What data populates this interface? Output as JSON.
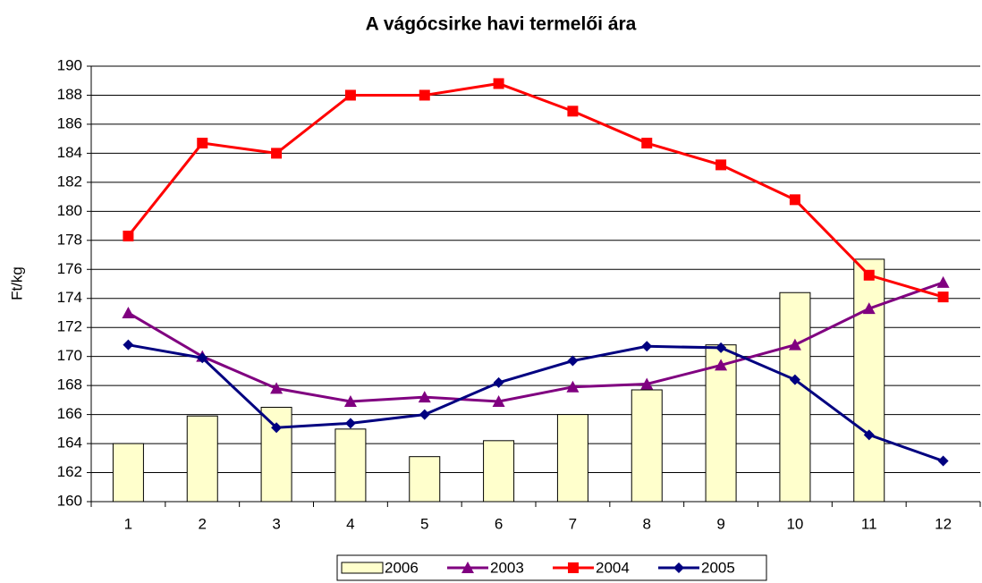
{
  "chart_data": {
    "type": "combo",
    "title": "A vágócsirke havi termelői ára",
    "y_label": "Ft/kg",
    "categories": [
      "1",
      "2",
      "3",
      "4",
      "5",
      "6",
      "7",
      "8",
      "9",
      "10",
      "11",
      "12"
    ],
    "series": [
      {
        "name": "2006",
        "type": "bar",
        "color": "#ffffcc",
        "values": [
          164.0,
          165.9,
          166.5,
          165.0,
          163.1,
          164.2,
          166.0,
          167.7,
          170.8,
          174.4,
          176.7,
          null
        ]
      },
      {
        "name": "2003",
        "type": "line",
        "marker": "triangle",
        "color": "#800080",
        "values": [
          173.0,
          170.0,
          167.8,
          166.9,
          167.2,
          166.9,
          167.9,
          168.1,
          169.4,
          170.8,
          173.3,
          175.1
        ]
      },
      {
        "name": "2004",
        "type": "line",
        "marker": "square",
        "color": "#ff0000",
        "values": [
          178.3,
          184.7,
          184.0,
          188.0,
          188.0,
          188.8,
          186.9,
          184.7,
          183.2,
          180.8,
          175.6,
          174.1
        ]
      },
      {
        "name": "2005",
        "type": "line",
        "marker": "diamond",
        "color": "#000080",
        "values": [
          170.8,
          169.9,
          165.1,
          165.4,
          166.0,
          168.2,
          169.7,
          170.7,
          170.6,
          168.4,
          164.6,
          162.8
        ]
      }
    ],
    "ylim": [
      160,
      190
    ],
    "yticks": [
      160,
      162,
      164,
      166,
      168,
      170,
      172,
      174,
      176,
      178,
      180,
      182,
      184,
      186,
      188,
      190
    ],
    "grid": true,
    "legend": "bottom"
  }
}
